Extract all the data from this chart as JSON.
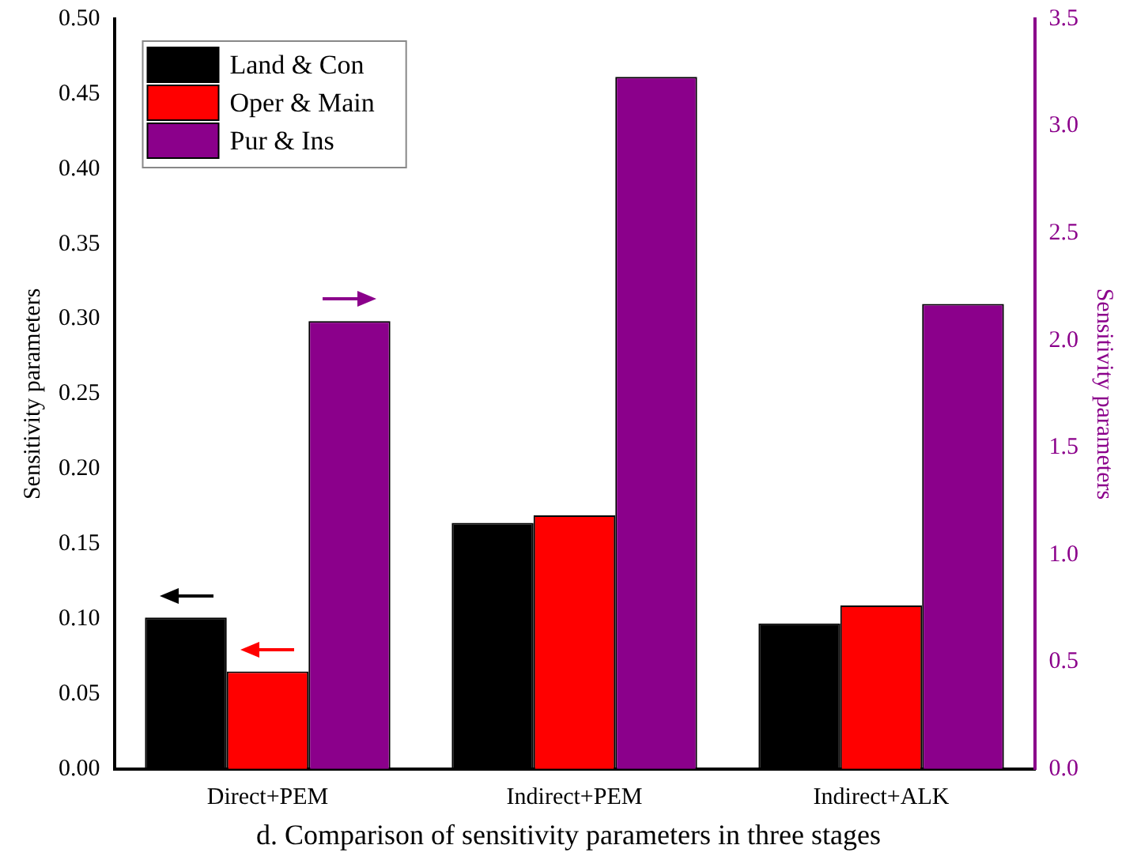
{
  "chart_data": {
    "type": "bar",
    "title": "d. Comparison of sensitivity parameters in three stages",
    "ylabel": "Sensitivity parameters",
    "y2label": "Sensitivity parameters",
    "categories": [
      "Direct+PEM",
      "Indirect+PEM",
      "Indirect+ALK"
    ],
    "series": [
      {
        "name": "Land & Con",
        "color": "#000000",
        "values": [
          0.101,
          0.164,
          0.097
        ]
      },
      {
        "name": "Oper & Main",
        "color": "#ff0000",
        "values": [
          0.065,
          0.169,
          0.109
        ]
      },
      {
        "name": "Pur & Ins",
        "color": "#8b008b",
        "values": [
          2.09,
          3.23,
          2.17
        ],
        "axis": "y2"
      }
    ],
    "ylim": [
      0,
      0.5
    ],
    "yticks": [
      {
        "value": 0,
        "label": "0.00"
      },
      {
        "value": 0.05,
        "label": "0.05"
      },
      {
        "value": 0.1,
        "label": "0.10"
      },
      {
        "value": 0.15,
        "label": "0.15"
      },
      {
        "value": 0.2,
        "label": "0.20"
      },
      {
        "value": 0.25,
        "label": "0.25"
      },
      {
        "value": 0.3,
        "label": "0.30"
      },
      {
        "value": 0.35,
        "label": "0.35"
      },
      {
        "value": 0.4,
        "label": "0.40"
      },
      {
        "value": 0.45,
        "label": "0.45"
      },
      {
        "value": 0.5,
        "label": "0.50"
      }
    ],
    "y2lim": [
      0,
      3.5
    ],
    "y2ticks": [
      {
        "value": 0,
        "label": "0.0"
      },
      {
        "value": 0.5,
        "label": "0.5"
      },
      {
        "value": 1,
        "label": "1.0"
      },
      {
        "value": 1.5,
        "label": "1.5"
      },
      {
        "value": 2,
        "label": "2.0"
      },
      {
        "value": 2.5,
        "label": "2.5"
      },
      {
        "value": 3,
        "label": "3.0"
      },
      {
        "value": 3.5,
        "label": "3.5"
      }
    ],
    "grid": false,
    "legend": "top left"
  }
}
